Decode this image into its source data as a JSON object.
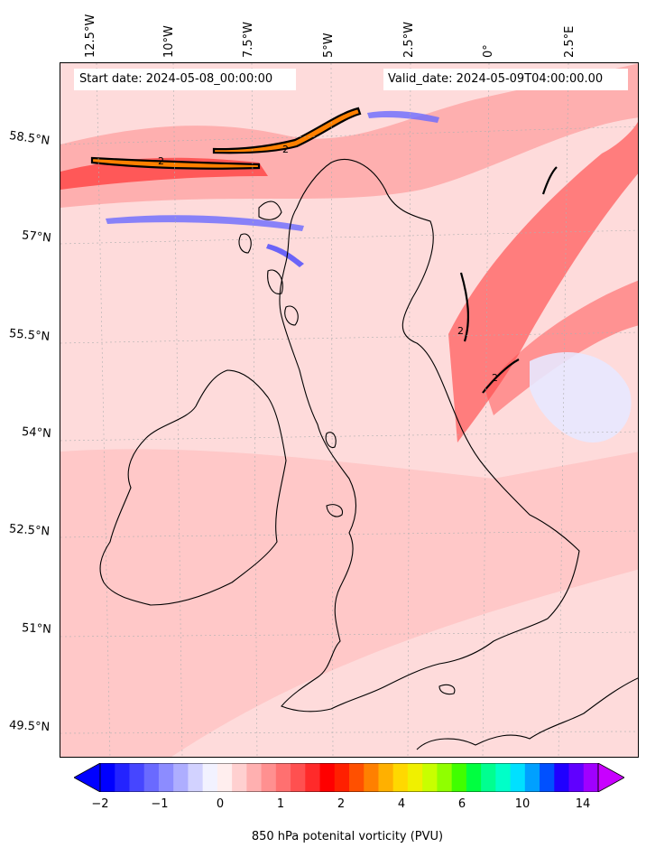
{
  "map": {
    "start_date": "Start date: 2024-05-08_00:00:00",
    "valid_date": "Valid_date: 2024-05-09T04:00:00.00",
    "longitude_labels": [
      "12.5°W",
      "10°W",
      "7.5°W",
      "5°W",
      "2.5°W",
      "0°",
      "2.5°E"
    ],
    "latitude_labels": [
      "58.5°N",
      "57°N",
      "55.5°N",
      "54°N",
      "52.5°N",
      "51°N",
      "49.5°N"
    ],
    "contour_label": "2",
    "region": "British Isles",
    "field": "850 hPa potential vorticity"
  },
  "colorbar": {
    "label": "850 hPa potenital vorticity (PVU)",
    "tick_labels": [
      "−2",
      "−1",
      "0",
      "1",
      "2",
      "4",
      "6",
      "10",
      "14"
    ],
    "colors": [
      "#0000ff",
      "#2323ff",
      "#4646ff",
      "#6a6aff",
      "#8c8cff",
      "#aeaeff",
      "#d2d2ff",
      "#f2f2ff",
      "#ffeeee",
      "#ffd0d0",
      "#ffb0b0",
      "#ff9090",
      "#ff7070",
      "#ff5050",
      "#ff2a2a",
      "#ff0000",
      "#ff2000",
      "#ff5000",
      "#ff8000",
      "#ffb000",
      "#ffd800",
      "#f0f000",
      "#c8ff00",
      "#90ff00",
      "#40ff00",
      "#00ff40",
      "#00ff90",
      "#00ffc8",
      "#00e0ff",
      "#00a0ff",
      "#0050ff",
      "#2000ff",
      "#6000ff",
      "#a000ff"
    ],
    "extend_low_color": "#0000ff",
    "extend_high_color": "#c800ff"
  }
}
